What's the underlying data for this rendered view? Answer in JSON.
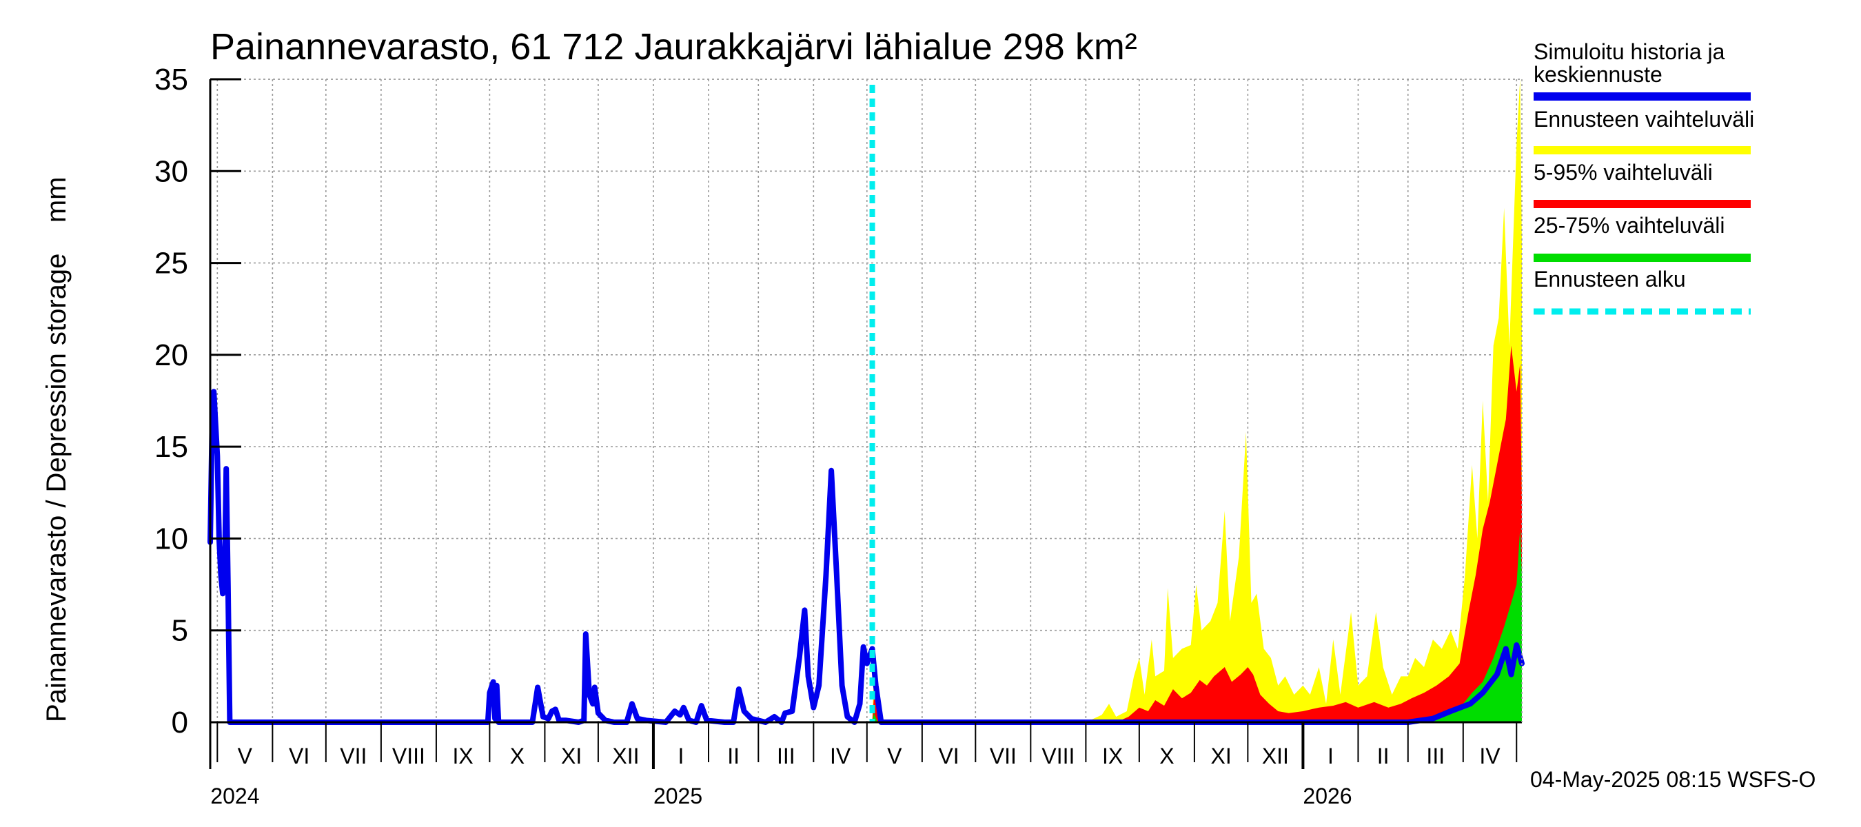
{
  "colors": {
    "history": "#0000ee",
    "full_range": "#ffff00",
    "p5_95": "#ff0000",
    "p25_75": "#00dd00",
    "forecast_start": "#00eeee"
  },
  "chart_data": {
    "type": "area",
    "title": "Painannevarasto, 61 712 Jaurakkajärvi lähialue 298 km²",
    "ylabel": "Painannevarasto / Depression storage    mm",
    "ylim": [
      0,
      35
    ],
    "yticks": [
      "0",
      "5",
      "10",
      "15",
      "20",
      "25",
      "30",
      "35"
    ],
    "ytick_values": [
      0,
      5,
      10,
      15,
      20,
      25,
      30,
      35
    ],
    "x_range": [
      "2024-04-27",
      "2026-05-04"
    ],
    "grid": true,
    "legend_position": "right",
    "months": [
      {
        "label": "V",
        "date": "2024-05-01"
      },
      {
        "label": "VI",
        "date": "2024-06-01"
      },
      {
        "label": "VII",
        "date": "2024-07-01"
      },
      {
        "label": "VIII",
        "date": "2024-08-01"
      },
      {
        "label": "IX",
        "date": "2024-09-01"
      },
      {
        "label": "X",
        "date": "2024-10-01"
      },
      {
        "label": "XI",
        "date": "2024-11-01"
      },
      {
        "label": "XII",
        "date": "2024-12-01"
      },
      {
        "label": "I",
        "date": "2025-01-01"
      },
      {
        "label": "II",
        "date": "2025-02-01"
      },
      {
        "label": "III",
        "date": "2025-03-01"
      },
      {
        "label": "IV",
        "date": "2025-04-01"
      },
      {
        "label": "V",
        "date": "2025-05-01"
      },
      {
        "label": "VI",
        "date": "2025-06-01"
      },
      {
        "label": "VII",
        "date": "2025-07-01"
      },
      {
        "label": "VIII",
        "date": "2025-08-01"
      },
      {
        "label": "IX",
        "date": "2025-09-01"
      },
      {
        "label": "X",
        "date": "2025-10-01"
      },
      {
        "label": "XI",
        "date": "2025-11-01"
      },
      {
        "label": "XII",
        "date": "2025-12-01"
      },
      {
        "label": "I",
        "date": "2026-01-01"
      },
      {
        "label": "II",
        "date": "2026-02-01"
      },
      {
        "label": "III",
        "date": "2026-03-01"
      },
      {
        "label": "IV",
        "date": "2026-04-01"
      },
      {
        "label": "",
        "date": "2026-05-01"
      }
    ],
    "years": [
      {
        "label": "2024",
        "date": "2024-05-01"
      },
      {
        "label": "2025",
        "date": "2025-01-01"
      },
      {
        "label": "2026",
        "date": "2026-01-01"
      }
    ],
    "forecast_start": "2025-05-04",
    "legend": [
      {
        "label": "Simuloitu historia ja\nkeskiennuste",
        "key": "history"
      },
      {
        "label": "Ennusteen vaihteluväli",
        "key": "full_range"
      },
      {
        "label": "5-95% vaihteluväli",
        "key": "p5_95"
      },
      {
        "label": "25-75% vaihteluväli",
        "key": "p25_75"
      },
      {
        "label": "Ennusteen alku",
        "key": "forecast_start"
      }
    ],
    "history": {
      "name": "Simuloitu historia ja keskiennuste",
      "points": [
        [
          "2024-04-27",
          9.8
        ],
        [
          "2024-04-28",
          16.0
        ],
        [
          "2024-04-29",
          18.0
        ],
        [
          "2024-05-01",
          14.5
        ],
        [
          "2024-05-02",
          10.0
        ],
        [
          "2024-05-03",
          8.0
        ],
        [
          "2024-05-04",
          7.0
        ],
        [
          "2024-05-05",
          7.5
        ],
        [
          "2024-05-06",
          13.8
        ],
        [
          "2024-05-07",
          7.5
        ],
        [
          "2024-05-08",
          0.0
        ],
        [
          "2024-09-30",
          0.0
        ],
        [
          "2024-10-01",
          1.6
        ],
        [
          "2024-10-03",
          2.2
        ],
        [
          "2024-10-04",
          0.2
        ],
        [
          "2024-10-05",
          2.0
        ],
        [
          "2024-10-06",
          0.0
        ],
        [
          "2024-10-25",
          0.0
        ],
        [
          "2024-10-28",
          1.9
        ],
        [
          "2024-10-31",
          0.3
        ],
        [
          "2024-11-03",
          0.2
        ],
        [
          "2024-11-05",
          0.6
        ],
        [
          "2024-11-07",
          0.7
        ],
        [
          "2024-11-09",
          0.1
        ],
        [
          "2024-11-13",
          0.1
        ],
        [
          "2024-11-20",
          0.0
        ],
        [
          "2024-11-23",
          0.1
        ],
        [
          "2024-11-24",
          4.8
        ],
        [
          "2024-11-26",
          1.5
        ],
        [
          "2024-11-28",
          1.0
        ],
        [
          "2024-11-29",
          1.9
        ],
        [
          "2024-12-01",
          0.5
        ],
        [
          "2024-12-05",
          0.1
        ],
        [
          "2024-12-10",
          0.0
        ],
        [
          "2024-12-17",
          0.0
        ],
        [
          "2024-12-20",
          1.0
        ],
        [
          "2024-12-23",
          0.2
        ],
        [
          "2024-12-28",
          0.1
        ],
        [
          "2025-01-08",
          0.0
        ],
        [
          "2025-01-13",
          0.6
        ],
        [
          "2025-01-16",
          0.4
        ],
        [
          "2025-01-18",
          0.8
        ],
        [
          "2025-01-21",
          0.1
        ],
        [
          "2025-01-25",
          0.0
        ],
        [
          "2025-01-28",
          0.9
        ],
        [
          "2025-01-31",
          0.1
        ],
        [
          "2025-02-10",
          0.0
        ],
        [
          "2025-02-15",
          0.0
        ],
        [
          "2025-02-18",
          1.8
        ],
        [
          "2025-02-21",
          0.6
        ],
        [
          "2025-02-25",
          0.2
        ],
        [
          "2025-03-05",
          0.0
        ],
        [
          "2025-03-10",
          0.3
        ],
        [
          "2025-03-14",
          0.0
        ],
        [
          "2025-03-16",
          0.5
        ],
        [
          "2025-03-20",
          0.6
        ],
        [
          "2025-03-24",
          3.5
        ],
        [
          "2025-03-27",
          6.1
        ],
        [
          "2025-03-29",
          2.5
        ],
        [
          "2025-04-01",
          0.8
        ],
        [
          "2025-04-04",
          2.0
        ],
        [
          "2025-04-08",
          8.0
        ],
        [
          "2025-04-11",
          13.7
        ],
        [
          "2025-04-14",
          8.0
        ],
        [
          "2025-04-17",
          2.0
        ],
        [
          "2025-04-20",
          0.3
        ],
        [
          "2025-04-24",
          0.0
        ],
        [
          "2025-04-27",
          1.0
        ],
        [
          "2025-04-29",
          4.1
        ],
        [
          "2025-05-01",
          3.2
        ],
        [
          "2025-05-04",
          4.0
        ],
        [
          "2025-05-06",
          2.0
        ],
        [
          "2025-05-09",
          0.0
        ],
        [
          "2026-03-01",
          0.0
        ],
        [
          "2026-03-15",
          0.2
        ],
        [
          "2026-03-25",
          0.6
        ],
        [
          "2026-04-05",
          1.0
        ],
        [
          "2026-04-12",
          1.6
        ],
        [
          "2026-04-20",
          2.6
        ],
        [
          "2026-04-25",
          4.0
        ],
        [
          "2026-04-28",
          2.6
        ],
        [
          "2026-05-01",
          4.2
        ],
        [
          "2026-05-04",
          3.2
        ]
      ]
    },
    "full_range": {
      "name": "Ennusteen vaihteluväli",
      "points": [
        [
          "2025-05-04",
          0
        ],
        [
          "2025-05-05",
          3.0
        ],
        [
          "2025-05-07",
          1.0
        ],
        [
          "2025-05-10",
          0
        ],
        [
          "2025-09-01",
          0
        ],
        [
          "2025-09-10",
          0.4
        ],
        [
          "2025-09-14",
          1.0
        ],
        [
          "2025-09-18",
          0.3
        ],
        [
          "2025-09-24",
          0.6
        ],
        [
          "2025-09-28",
          2.5
        ],
        [
          "2025-10-01",
          3.5
        ],
        [
          "2025-10-04",
          1.5
        ],
        [
          "2025-10-08",
          4.5
        ],
        [
          "2025-10-10",
          2.5
        ],
        [
          "2025-10-15",
          2.8
        ],
        [
          "2025-10-17",
          7.3
        ],
        [
          "2025-10-20",
          3.5
        ],
        [
          "2025-10-25",
          4.0
        ],
        [
          "2025-10-30",
          4.2
        ],
        [
          "2025-11-02",
          7.5
        ],
        [
          "2025-11-05",
          5.0
        ],
        [
          "2025-11-10",
          5.5
        ],
        [
          "2025-11-14",
          6.5
        ],
        [
          "2025-11-18",
          11.5
        ],
        [
          "2025-11-21",
          5.5
        ],
        [
          "2025-11-26",
          9.0
        ],
        [
          "2025-11-30",
          15.8
        ],
        [
          "2025-12-03",
          6.5
        ],
        [
          "2025-12-06",
          7.0
        ],
        [
          "2025-12-10",
          4.0
        ],
        [
          "2025-12-14",
          3.5
        ],
        [
          "2025-12-18",
          2.0
        ],
        [
          "2025-12-22",
          2.5
        ],
        [
          "2025-12-27",
          1.5
        ],
        [
          "2026-01-01",
          2.0
        ],
        [
          "2026-01-05",
          1.5
        ],
        [
          "2026-01-10",
          3.0
        ],
        [
          "2026-01-14",
          1.0
        ],
        [
          "2026-01-18",
          4.5
        ],
        [
          "2026-01-22",
          1.5
        ],
        [
          "2026-01-28",
          6.0
        ],
        [
          "2026-02-01",
          2.0
        ],
        [
          "2026-02-06",
          2.5
        ],
        [
          "2026-02-11",
          6.0
        ],
        [
          "2026-02-15",
          3.0
        ],
        [
          "2026-02-20",
          1.5
        ],
        [
          "2026-02-25",
          2.5
        ],
        [
          "2026-03-01",
          2.5
        ],
        [
          "2026-03-05",
          3.5
        ],
        [
          "2026-03-10",
          3.0
        ],
        [
          "2026-03-15",
          4.5
        ],
        [
          "2026-03-20",
          4.0
        ],
        [
          "2026-03-25",
          5.0
        ],
        [
          "2026-03-29",
          4.0
        ],
        [
          "2026-04-02",
          8.0
        ],
        [
          "2026-04-06",
          14.0
        ],
        [
          "2026-04-09",
          10.0
        ],
        [
          "2026-04-12",
          17.5
        ],
        [
          "2026-04-15",
          12.0
        ],
        [
          "2026-04-18",
          20.5
        ],
        [
          "2026-04-21",
          22.0
        ],
        [
          "2026-04-24",
          28.0
        ],
        [
          "2026-04-27",
          20.5
        ],
        [
          "2026-04-29",
          26.0
        ],
        [
          "2026-05-01",
          31.5
        ],
        [
          "2026-05-03",
          35.0
        ],
        [
          "2026-05-04",
          26.0
        ]
      ]
    },
    "p5_95": {
      "name": "5-95% vaihteluväli",
      "points": [
        [
          "2025-05-04",
          0
        ],
        [
          "2025-05-05",
          1.5
        ],
        [
          "2025-05-08",
          0
        ],
        [
          "2025-09-18",
          0
        ],
        [
          "2025-09-25",
          0.3
        ],
        [
          "2025-10-01",
          0.8
        ],
        [
          "2025-10-06",
          0.6
        ],
        [
          "2025-10-10",
          1.2
        ],
        [
          "2025-10-15",
          0.9
        ],
        [
          "2025-10-20",
          1.8
        ],
        [
          "2025-10-25",
          1.3
        ],
        [
          "2025-10-30",
          1.6
        ],
        [
          "2025-11-04",
          2.3
        ],
        [
          "2025-11-08",
          2.0
        ],
        [
          "2025-11-12",
          2.5
        ],
        [
          "2025-11-18",
          3.0
        ],
        [
          "2025-11-22",
          2.2
        ],
        [
          "2025-11-27",
          2.6
        ],
        [
          "2025-12-01",
          3.0
        ],
        [
          "2025-12-04",
          2.6
        ],
        [
          "2025-12-08",
          1.5
        ],
        [
          "2025-12-13",
          1.0
        ],
        [
          "2025-12-18",
          0.6
        ],
        [
          "2025-12-24",
          0.5
        ],
        [
          "2026-01-01",
          0.6
        ],
        [
          "2026-01-10",
          0.8
        ],
        [
          "2026-01-18",
          0.9
        ],
        [
          "2026-01-25",
          1.1
        ],
        [
          "2026-02-01",
          0.8
        ],
        [
          "2026-02-10",
          1.1
        ],
        [
          "2026-02-18",
          0.8
        ],
        [
          "2026-02-25",
          1.0
        ],
        [
          "2026-03-03",
          1.3
        ],
        [
          "2026-03-10",
          1.6
        ],
        [
          "2026-03-17",
          2.0
        ],
        [
          "2026-03-24",
          2.5
        ],
        [
          "2026-03-30",
          3.2
        ],
        [
          "2026-04-04",
          6.0
        ],
        [
          "2026-04-08",
          8.0
        ],
        [
          "2026-04-12",
          10.5
        ],
        [
          "2026-04-16",
          12.0
        ],
        [
          "2026-04-19",
          13.5
        ],
        [
          "2026-04-22",
          15.0
        ],
        [
          "2026-04-25",
          16.5
        ],
        [
          "2026-04-28",
          20.5
        ],
        [
          "2026-05-01",
          18.0
        ],
        [
          "2026-05-03",
          19.5
        ],
        [
          "2026-05-04",
          12.0
        ]
      ]
    },
    "p25_75": {
      "name": "25-75% vaihteluväli",
      "points": [
        [
          "2025-05-04",
          0
        ],
        [
          "2025-05-05",
          0.5
        ],
        [
          "2025-05-07",
          0
        ],
        [
          "2026-02-20",
          0
        ],
        [
          "2026-03-05",
          0.1
        ],
        [
          "2026-03-15",
          0.3
        ],
        [
          "2026-03-25",
          0.6
        ],
        [
          "2026-04-01",
          1.0
        ],
        [
          "2026-04-06",
          1.6
        ],
        [
          "2026-04-12",
          2.2
        ],
        [
          "2026-04-18",
          3.5
        ],
        [
          "2026-04-24",
          5.2
        ],
        [
          "2026-04-28",
          6.5
        ],
        [
          "2026-05-01",
          7.5
        ],
        [
          "2026-05-03",
          10.5
        ],
        [
          "2026-05-04",
          8.0
        ]
      ]
    }
  },
  "footer": "04-May-2025 08:15 WSFS-O"
}
